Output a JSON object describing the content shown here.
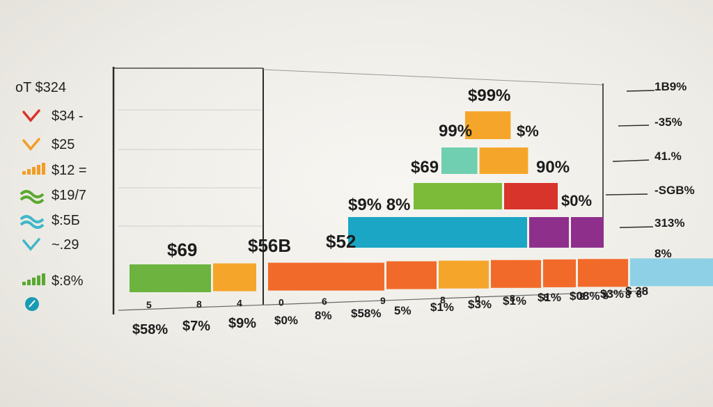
{
  "chart_data": {
    "type": "bar",
    "title": "",
    "legend": {
      "position": "left",
      "header": "oT  $324",
      "items": [
        {
          "icon": "check-red-icon",
          "color": "#d9342b",
          "label": "$34 -"
        },
        {
          "icon": "check-orange-icon",
          "color": "#f39c25",
          "label": "$25"
        },
        {
          "icon": "bars-orange-icon",
          "color": "#f39c25",
          "label": "$12 ="
        },
        {
          "icon": "wave-green-icon",
          "color": "#5aa832",
          "label": "$19/7"
        },
        {
          "icon": "wave-teal-icon",
          "color": "#3fb6c9",
          "label": "$:5Б"
        },
        {
          "icon": "check-teal-icon",
          "color": "#3fb6c9",
          "label": "~.29"
        },
        {
          "icon": "bars-green-icon",
          "color": "#5aa832",
          "label": "$:8%"
        },
        {
          "icon": "circle-teal-icon",
          "color": "#1a9bb4",
          "label": ""
        }
      ]
    },
    "right_axis_labels": [
      "1B9%",
      "-35%",
      "41.%",
      "-SGB%",
      "313%",
      "8%"
    ],
    "bottom_small_labels": [
      "5",
      "8",
      "4",
      "0",
      "6",
      "9",
      "8",
      "0",
      "8",
      "8",
      "8",
      "8",
      "8",
      "8"
    ],
    "bottom_labels": [
      "$58%",
      "$7%",
      "$9%",
      "$0%",
      "8%",
      "$58%",
      "5%",
      "$1%",
      "$3%",
      "$1%",
      "$1%",
      "$08%",
      "$3%",
      "$ 38"
    ],
    "annotations": [
      "$99%",
      "99%",
      "$%",
      "$69",
      "90%",
      "$9% 8%",
      "$0%",
      "$69",
      "$56B",
      "$52"
    ],
    "rows": [
      {
        "segments": [
          {
            "value": 9,
            "color": "#f5a62a"
          }
        ]
      },
      {
        "segments": [
          {
            "value": 6,
            "color": "#6fcfb0"
          },
          {
            "value": 8,
            "color": "#f5a62a"
          }
        ]
      },
      {
        "segments": [
          {
            "value": 13,
            "color": "#7cbb3a"
          },
          {
            "value": 8,
            "color": "#d9342b"
          }
        ]
      },
      {
        "segments": [
          {
            "value": 26,
            "color": "#1aa6c4"
          },
          {
            "value": 6,
            "color": "#8e2f8c"
          },
          {
            "value": 5,
            "color": "#8e2f8c"
          }
        ]
      },
      {
        "segments": [
          {
            "value": 12,
            "color": "#6cb33f"
          },
          {
            "value": 6.5,
            "color": "#f5a62a"
          },
          {
            "value": 17,
            "color": "#f26a2a"
          },
          {
            "value": 7.5,
            "color": "#f26a2a"
          },
          {
            "value": 7.5,
            "color": "#f5a62a"
          },
          {
            "value": 7.5,
            "color": "#f26a2a"
          },
          {
            "value": 5,
            "color": "#f26a2a"
          },
          {
            "value": 7.5,
            "color": "#f26a2a"
          },
          {
            "value": 16,
            "color": "#8ed1e6"
          }
        ]
      }
    ]
  }
}
